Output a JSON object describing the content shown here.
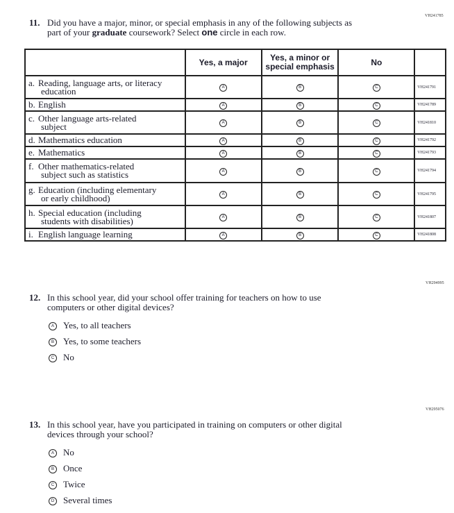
{
  "q11": {
    "id": "VH241785",
    "number": "11.",
    "text_1": "Did you have a major, minor, or special emphasis in any of the following subjects as",
    "text_2a": "part of your ",
    "text_2b": "graduate",
    "text_2c": " coursework? Select ",
    "text_2d": "one",
    "text_2e": " circle in each row.",
    "columns": [
      "Yes, a major",
      "Yes, a minor or special emphasis",
      "No"
    ],
    "bubbles": [
      "A",
      "B",
      "C"
    ],
    "rows": [
      {
        "letter": "a.",
        "line1": "Reading, language arts, or literacy",
        "line2": "education",
        "id": "VH241791"
      },
      {
        "letter": "b.",
        "line1": "English",
        "line2": "",
        "id": "VH241789"
      },
      {
        "letter": "c.",
        "line1": "Other language arts-related",
        "line2": "subject",
        "id": "VH241810"
      },
      {
        "letter": "d.",
        "line1": "Mathematics education",
        "line2": "",
        "id": "VH241792"
      },
      {
        "letter": "e.",
        "line1": "Mathematics",
        "line2": "",
        "id": "VH241793"
      },
      {
        "letter": "f.",
        "line1": "Other mathematics-related",
        "line2": "subject such as statistics",
        "id": "VH241794"
      },
      {
        "letter": "g.",
        "line1": "Education (including elementary",
        "line2": "or early childhood)",
        "id": "VH241795"
      },
      {
        "letter": "h.",
        "line1": "Special education (including",
        "line2": "students with disabilities)",
        "id": "VH241807"
      },
      {
        "letter": "i.",
        "line1": "English language learning",
        "line2": "",
        "id": "VH241808"
      }
    ]
  },
  "q12": {
    "id": "VH294995",
    "number": "12.",
    "line1": "In this school year, did your school offer training for teachers on how to use",
    "line2": "computers or other digital devices?",
    "options": [
      {
        "bubble": "A",
        "label": "Yes, to all teachers"
      },
      {
        "bubble": "B",
        "label": "Yes, to some teachers"
      },
      {
        "bubble": "C",
        "label": "No"
      }
    ]
  },
  "q13": {
    "id": "VH295076",
    "number": "13.",
    "line1": "In this school year, have you participated in training on computers or other digital",
    "line2": "devices through your school?",
    "options": [
      {
        "bubble": "A",
        "label": "No"
      },
      {
        "bubble": "B",
        "label": "Once"
      },
      {
        "bubble": "C",
        "label": "Twice"
      },
      {
        "bubble": "D",
        "label": "Several times"
      }
    ]
  }
}
